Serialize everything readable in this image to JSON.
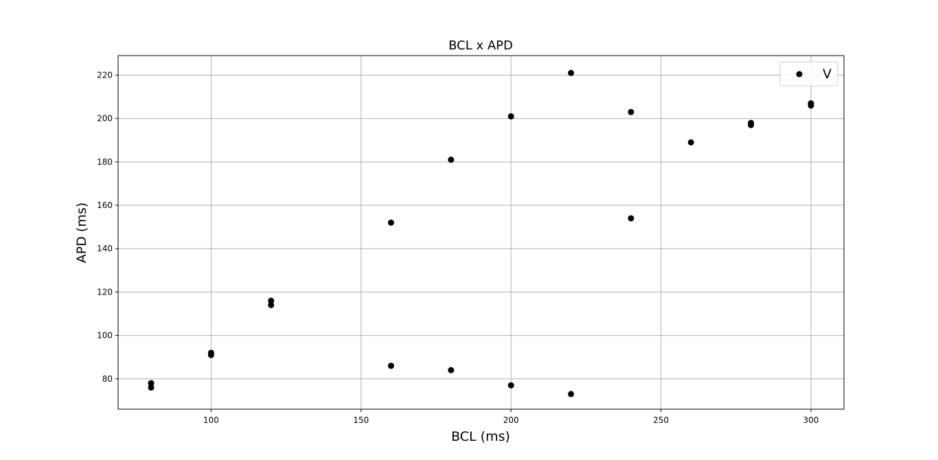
{
  "chart_data": {
    "type": "scatter",
    "title": "BCL x APD",
    "xlabel": "BCL (ms)",
    "ylabel": "APD (ms)",
    "xlim": [
      69,
      311
    ],
    "ylim": [
      66,
      229
    ],
    "xticks": [
      100,
      150,
      200,
      250,
      300
    ],
    "yticks": [
      80,
      100,
      120,
      140,
      160,
      180,
      200,
      220
    ],
    "grid": true,
    "legend_position": "top-right",
    "series": [
      {
        "name": "V",
        "color": "#000000",
        "points": [
          {
            "x": 80,
            "y": 78
          },
          {
            "x": 80,
            "y": 76
          },
          {
            "x": 100,
            "y": 92
          },
          {
            "x": 100,
            "y": 91
          },
          {
            "x": 120,
            "y": 116
          },
          {
            "x": 120,
            "y": 114
          },
          {
            "x": 160,
            "y": 152
          },
          {
            "x": 160,
            "y": 86
          },
          {
            "x": 180,
            "y": 181
          },
          {
            "x": 180,
            "y": 84
          },
          {
            "x": 200,
            "y": 201
          },
          {
            "x": 200,
            "y": 77
          },
          {
            "x": 220,
            "y": 221
          },
          {
            "x": 220,
            "y": 73
          },
          {
            "x": 240,
            "y": 203
          },
          {
            "x": 240,
            "y": 154
          },
          {
            "x": 260,
            "y": 189
          },
          {
            "x": 280,
            "y": 198
          },
          {
            "x": 280,
            "y": 197
          },
          {
            "x": 300,
            "y": 207
          },
          {
            "x": 300,
            "y": 206
          }
        ]
      }
    ]
  }
}
